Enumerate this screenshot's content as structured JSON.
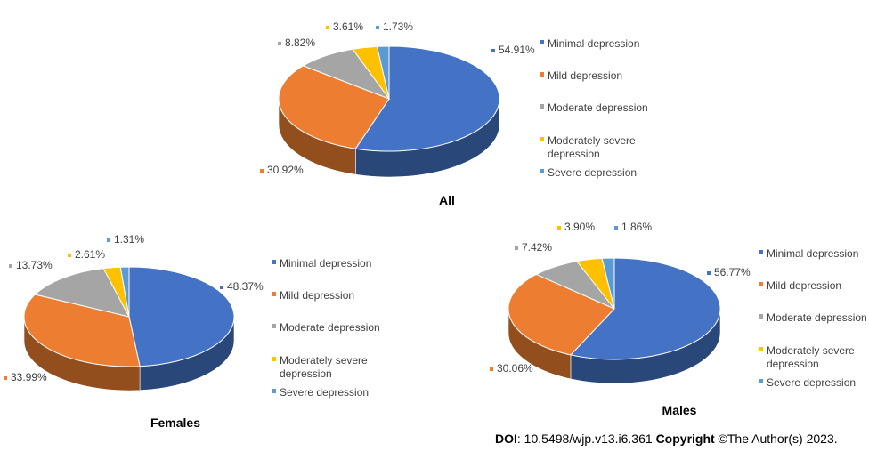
{
  "colors": {
    "Minimal depression": "#4472C4",
    "Mild depression": "#ED7D31",
    "Moderate depression": "#A5A5A5",
    "Moderately severe depression": "#FFC000",
    "Severe depression": "#5B9BD5"
  },
  "chart_data": [
    {
      "type": "pie",
      "title": "All",
      "legend_position": "right",
      "categories": [
        "Minimal depression",
        "Mild depression",
        "Moderate depression",
        "Moderately severe depression",
        "Severe depression"
      ],
      "values": [
        54.91,
        30.92,
        8.82,
        3.61,
        1.73
      ],
      "data_labels": [
        "54.91%",
        "30.92%",
        "8.82%",
        "3.61%",
        "1.73%"
      ]
    },
    {
      "type": "pie",
      "title": "Females",
      "legend_position": "right",
      "categories": [
        "Minimal depression",
        "Mild depression",
        "Moderate depression",
        "Moderately severe depression",
        "Severe depression"
      ],
      "values": [
        48.37,
        33.99,
        13.73,
        2.61,
        1.31
      ],
      "data_labels": [
        "48.37%",
        "33.99%",
        "13.73%",
        "2.61%",
        "1.31%"
      ]
    },
    {
      "type": "pie",
      "title": "Males",
      "legend_position": "right",
      "categories": [
        "Minimal depression",
        "Mild depression",
        "Moderate depression",
        "Moderately severe depression",
        "Severe depression"
      ],
      "values": [
        56.77,
        30.06,
        7.42,
        3.9,
        1.86
      ],
      "data_labels": [
        "56.77%",
        "30.06%",
        "7.42%",
        "3.90%",
        "1.86%"
      ]
    }
  ],
  "footer": {
    "doi_label": "DOI",
    "doi_value": ": 10.5498/wjp.v13.i6.361 ",
    "copyright_label": "Copyright",
    "copyright_value": " ©The Author(s) 2023."
  }
}
